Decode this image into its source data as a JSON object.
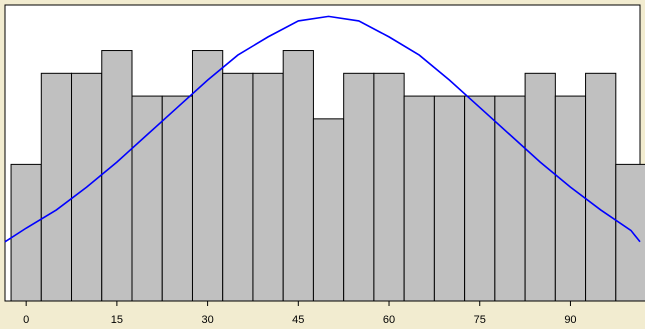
{
  "chart_data": {
    "type": "bar",
    "title": "",
    "xlabel": "",
    "ylabel": "",
    "x_ticks": [
      "0",
      "15",
      "30",
      "45",
      "60",
      "75",
      "90"
    ],
    "bin_centers": [
      0,
      5,
      10,
      15,
      20,
      25,
      30,
      35,
      40,
      45,
      50,
      55,
      60,
      65,
      70,
      75,
      80,
      85,
      90,
      95,
      100
    ],
    "values": [
      6,
      10,
      10,
      11,
      9,
      9,
      11,
      10,
      10,
      11,
      8,
      10,
      10,
      9,
      9,
      9,
      9,
      10,
      9,
      10,
      6
    ],
    "ylim": [
      0,
      13
    ],
    "xlim": [
      -3.5,
      101.5
    ],
    "overlay": {
      "type": "line",
      "name": "",
      "x": [
        -3.5,
        0,
        5,
        10,
        15,
        20,
        25,
        30,
        35,
        40,
        45,
        50,
        55,
        60,
        65,
        70,
        75,
        80,
        85,
        90,
        95,
        100,
        101.5
      ],
      "y": [
        2.6,
        3.2,
        4.0,
        5.0,
        6.1,
        7.3,
        8.5,
        9.7,
        10.8,
        11.6,
        12.3,
        12.5,
        12.3,
        11.6,
        10.8,
        9.7,
        8.5,
        7.3,
        6.1,
        5.0,
        4.0,
        3.1,
        2.6
      ]
    },
    "grid": false,
    "legend": "none",
    "colors": {
      "bar_fill": "#c0c0c0",
      "bar_stroke": "#000000",
      "line": "#0000ff",
      "plot_bg": "#ffffff",
      "page_bg": "#f2ecd0"
    }
  }
}
